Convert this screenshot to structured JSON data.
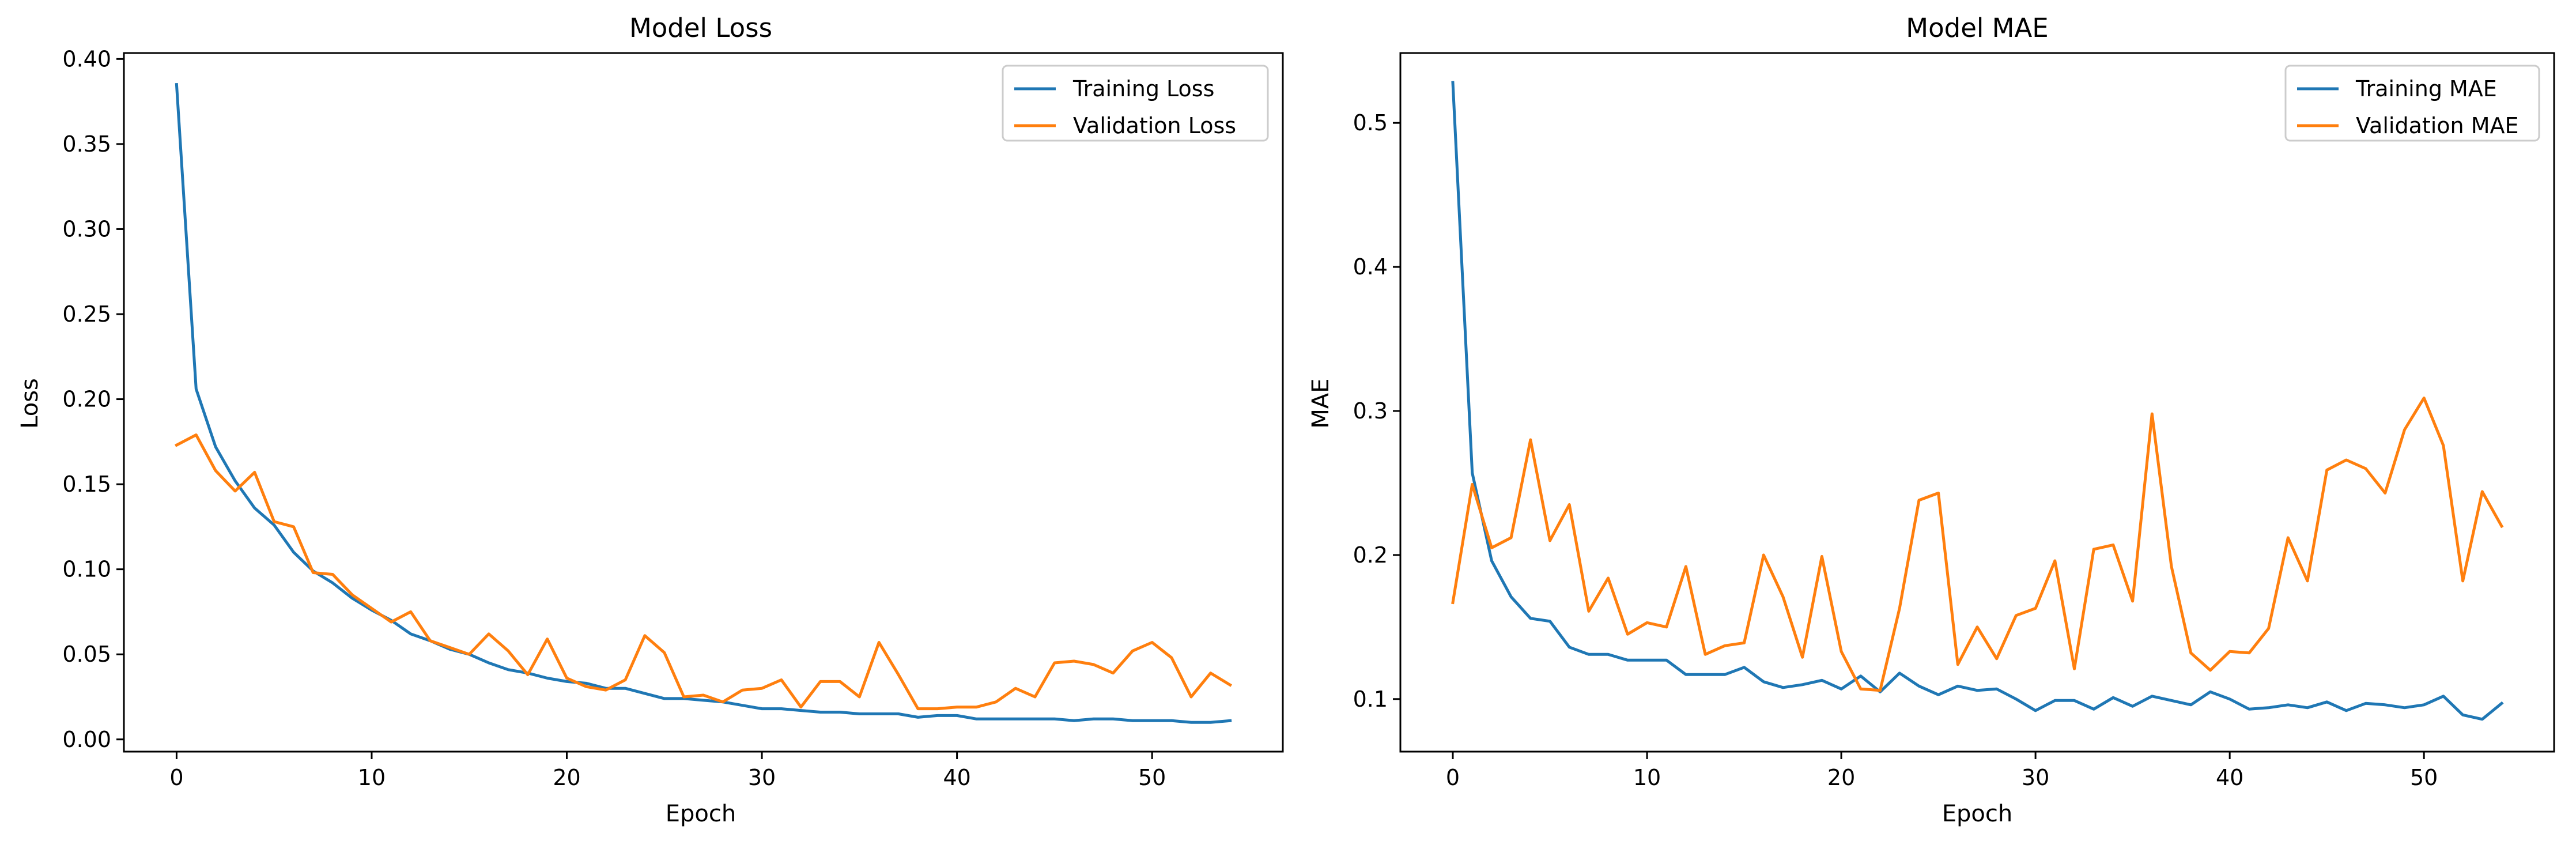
{
  "chart_data": [
    {
      "type": "line",
      "title": "Model Loss",
      "xlabel": "Epoch",
      "ylabel": "Loss",
      "xlim": [
        -2.7,
        56.7
      ],
      "ylim": [
        -0.0072,
        0.4035
      ],
      "xticks": [
        0,
        10,
        20,
        30,
        40,
        50
      ],
      "yticks": [
        0.0,
        0.05,
        0.1,
        0.15,
        0.2,
        0.25,
        0.3,
        0.35,
        0.4
      ],
      "ytick_decimals": 2,
      "grid": false,
      "legend": "top-right",
      "x": [
        0,
        1,
        2,
        3,
        4,
        5,
        6,
        7,
        8,
        9,
        10,
        11,
        12,
        13,
        14,
        15,
        16,
        17,
        18,
        19,
        20,
        21,
        22,
        23,
        24,
        25,
        26,
        27,
        28,
        29,
        30,
        31,
        32,
        33,
        34,
        35,
        36,
        37,
        38,
        39,
        40,
        41,
        42,
        43,
        44,
        45,
        46,
        47,
        48,
        49,
        50,
        51,
        52,
        53,
        54
      ],
      "series": [
        {
          "name": "Training Loss",
          "color": "#1f77b4",
          "values": [
            0.385,
            0.206,
            0.172,
            0.152,
            0.136,
            0.126,
            0.11,
            0.099,
            0.092,
            0.083,
            0.076,
            0.07,
            0.062,
            0.058,
            0.053,
            0.05,
            0.045,
            0.041,
            0.039,
            0.036,
            0.034,
            0.033,
            0.03,
            0.03,
            0.027,
            0.024,
            0.024,
            0.023,
            0.022,
            0.02,
            0.018,
            0.018,
            0.017,
            0.016,
            0.016,
            0.015,
            0.015,
            0.015,
            0.013,
            0.014,
            0.014,
            0.012,
            0.012,
            0.012,
            0.012,
            0.012,
            0.011,
            0.012,
            0.012,
            0.011,
            0.011,
            0.011,
            0.01,
            0.01,
            0.011
          ]
        },
        {
          "name": "Validation Loss",
          "color": "#ff7f0e",
          "values": [
            0.173,
            0.179,
            0.158,
            0.146,
            0.157,
            0.128,
            0.125,
            0.098,
            0.097,
            0.085,
            0.077,
            0.069,
            0.075,
            0.058,
            0.054,
            0.05,
            0.062,
            0.052,
            0.038,
            0.059,
            0.036,
            0.031,
            0.029,
            0.035,
            0.061,
            0.051,
            0.025,
            0.026,
            0.022,
            0.029,
            0.03,
            0.035,
            0.019,
            0.034,
            0.034,
            0.025,
            0.057,
            0.038,
            0.018,
            0.018,
            0.019,
            0.019,
            0.022,
            0.03,
            0.025,
            0.045,
            0.046,
            0.044,
            0.039,
            0.052,
            0.057,
            0.048,
            0.025,
            0.039,
            0.032
          ]
        }
      ]
    },
    {
      "type": "line",
      "title": "Model MAE",
      "xlabel": "Epoch",
      "ylabel": "MAE",
      "xlim": [
        -2.7,
        56.7
      ],
      "ylim": [
        0.0635,
        0.5485
      ],
      "xticks": [
        0,
        10,
        20,
        30,
        40,
        50
      ],
      "yticks": [
        0.1,
        0.2,
        0.3,
        0.4,
        0.5
      ],
      "ytick_decimals": 1,
      "grid": false,
      "legend": "top-right",
      "x": [
        0,
        1,
        2,
        3,
        4,
        5,
        6,
        7,
        8,
        9,
        10,
        11,
        12,
        13,
        14,
        15,
        16,
        17,
        18,
        19,
        20,
        21,
        22,
        23,
        24,
        25,
        26,
        27,
        28,
        29,
        30,
        31,
        32,
        33,
        34,
        35,
        36,
        37,
        38,
        39,
        40,
        41,
        42,
        43,
        44,
        45,
        46,
        47,
        48,
        49,
        50,
        51,
        52,
        53,
        54
      ],
      "series": [
        {
          "name": "Training MAE",
          "color": "#1f77b4",
          "values": [
            0.528,
            0.257,
            0.196,
            0.171,
            0.156,
            0.154,
            0.136,
            0.131,
            0.131,
            0.127,
            0.127,
            0.127,
            0.117,
            0.117,
            0.117,
            0.122,
            0.112,
            0.108,
            0.11,
            0.113,
            0.107,
            0.116,
            0.105,
            0.118,
            0.109,
            0.103,
            0.109,
            0.106,
            0.107,
            0.1,
            0.092,
            0.099,
            0.099,
            0.093,
            0.101,
            0.095,
            0.102,
            0.099,
            0.096,
            0.105,
            0.1,
            0.093,
            0.094,
            0.096,
            0.094,
            0.098,
            0.092,
            0.097,
            0.096,
            0.094,
            0.096,
            0.102,
            0.089,
            0.086,
            0.097
          ]
        },
        {
          "name": "Validation MAE",
          "color": "#ff7f0e",
          "values": [
            0.167,
            0.249,
            0.205,
            0.212,
            0.28,
            0.21,
            0.235,
            0.161,
            0.184,
            0.145,
            0.153,
            0.15,
            0.192,
            0.131,
            0.137,
            0.139,
            0.2,
            0.171,
            0.129,
            0.199,
            0.133,
            0.107,
            0.106,
            0.163,
            0.238,
            0.243,
            0.124,
            0.15,
            0.128,
            0.158,
            0.163,
            0.196,
            0.121,
            0.204,
            0.207,
            0.168,
            0.298,
            0.192,
            0.132,
            0.12,
            0.133,
            0.132,
            0.149,
            0.212,
            0.182,
            0.259,
            0.266,
            0.26,
            0.243,
            0.287,
            0.309,
            0.276,
            0.182,
            0.244,
            0.22
          ]
        }
      ]
    }
  ]
}
